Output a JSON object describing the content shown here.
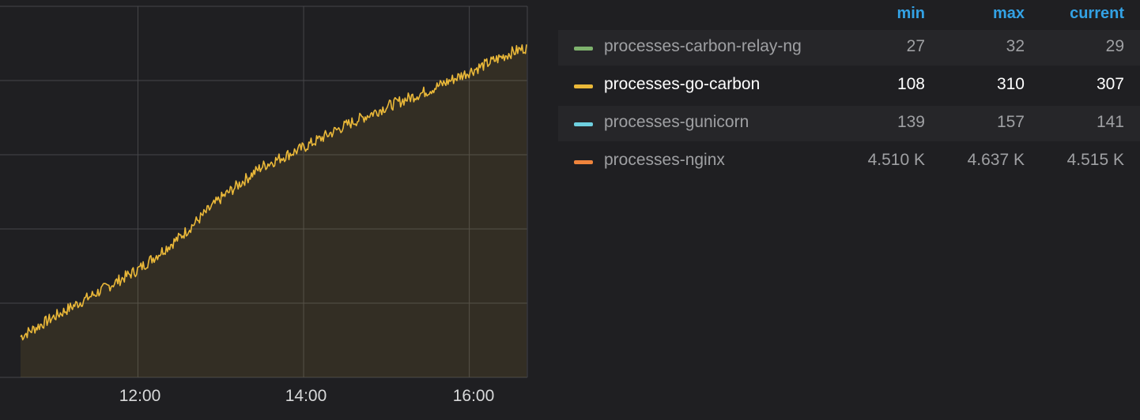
{
  "chart_data": {
    "type": "line",
    "x_axis": {
      "ticks": [
        "12:00",
        "14:00",
        "16:00"
      ],
      "range": [
        "10:35",
        "16:42"
      ]
    },
    "grid": true,
    "series": [
      {
        "name": "processes-go-carbon",
        "color": "#eab839",
        "fill": true,
        "x": [
          "10:35",
          "11:00",
          "11:30",
          "12:00",
          "12:30",
          "13:00",
          "13:30",
          "14:00",
          "14:30",
          "15:00",
          "15:30",
          "16:00",
          "16:30",
          "16:42"
        ],
        "y": [
          108,
          122,
          138,
          154,
          176,
          203,
          225,
          238,
          253,
          266,
          277,
          290,
          303,
          307
        ]
      }
    ]
  },
  "legend": {
    "headers": {
      "min": "min",
      "max": "max",
      "current": "current"
    },
    "rows": [
      {
        "name": "processes-carbon-relay-ng",
        "color": "#7eb26d",
        "min": "27",
        "max": "32",
        "current": "29",
        "active": false
      },
      {
        "name": "processes-go-carbon",
        "color": "#eab839",
        "min": "108",
        "max": "310",
        "current": "307",
        "active": true
      },
      {
        "name": "processes-gunicorn",
        "color": "#6ed0e0",
        "min": "139",
        "max": "157",
        "current": "141",
        "active": false
      },
      {
        "name": "processes-nginx",
        "color": "#ef843c",
        "min": "4.510 K",
        "max": "4.637 K",
        "current": "4.515 K",
        "active": false
      }
    ]
  }
}
